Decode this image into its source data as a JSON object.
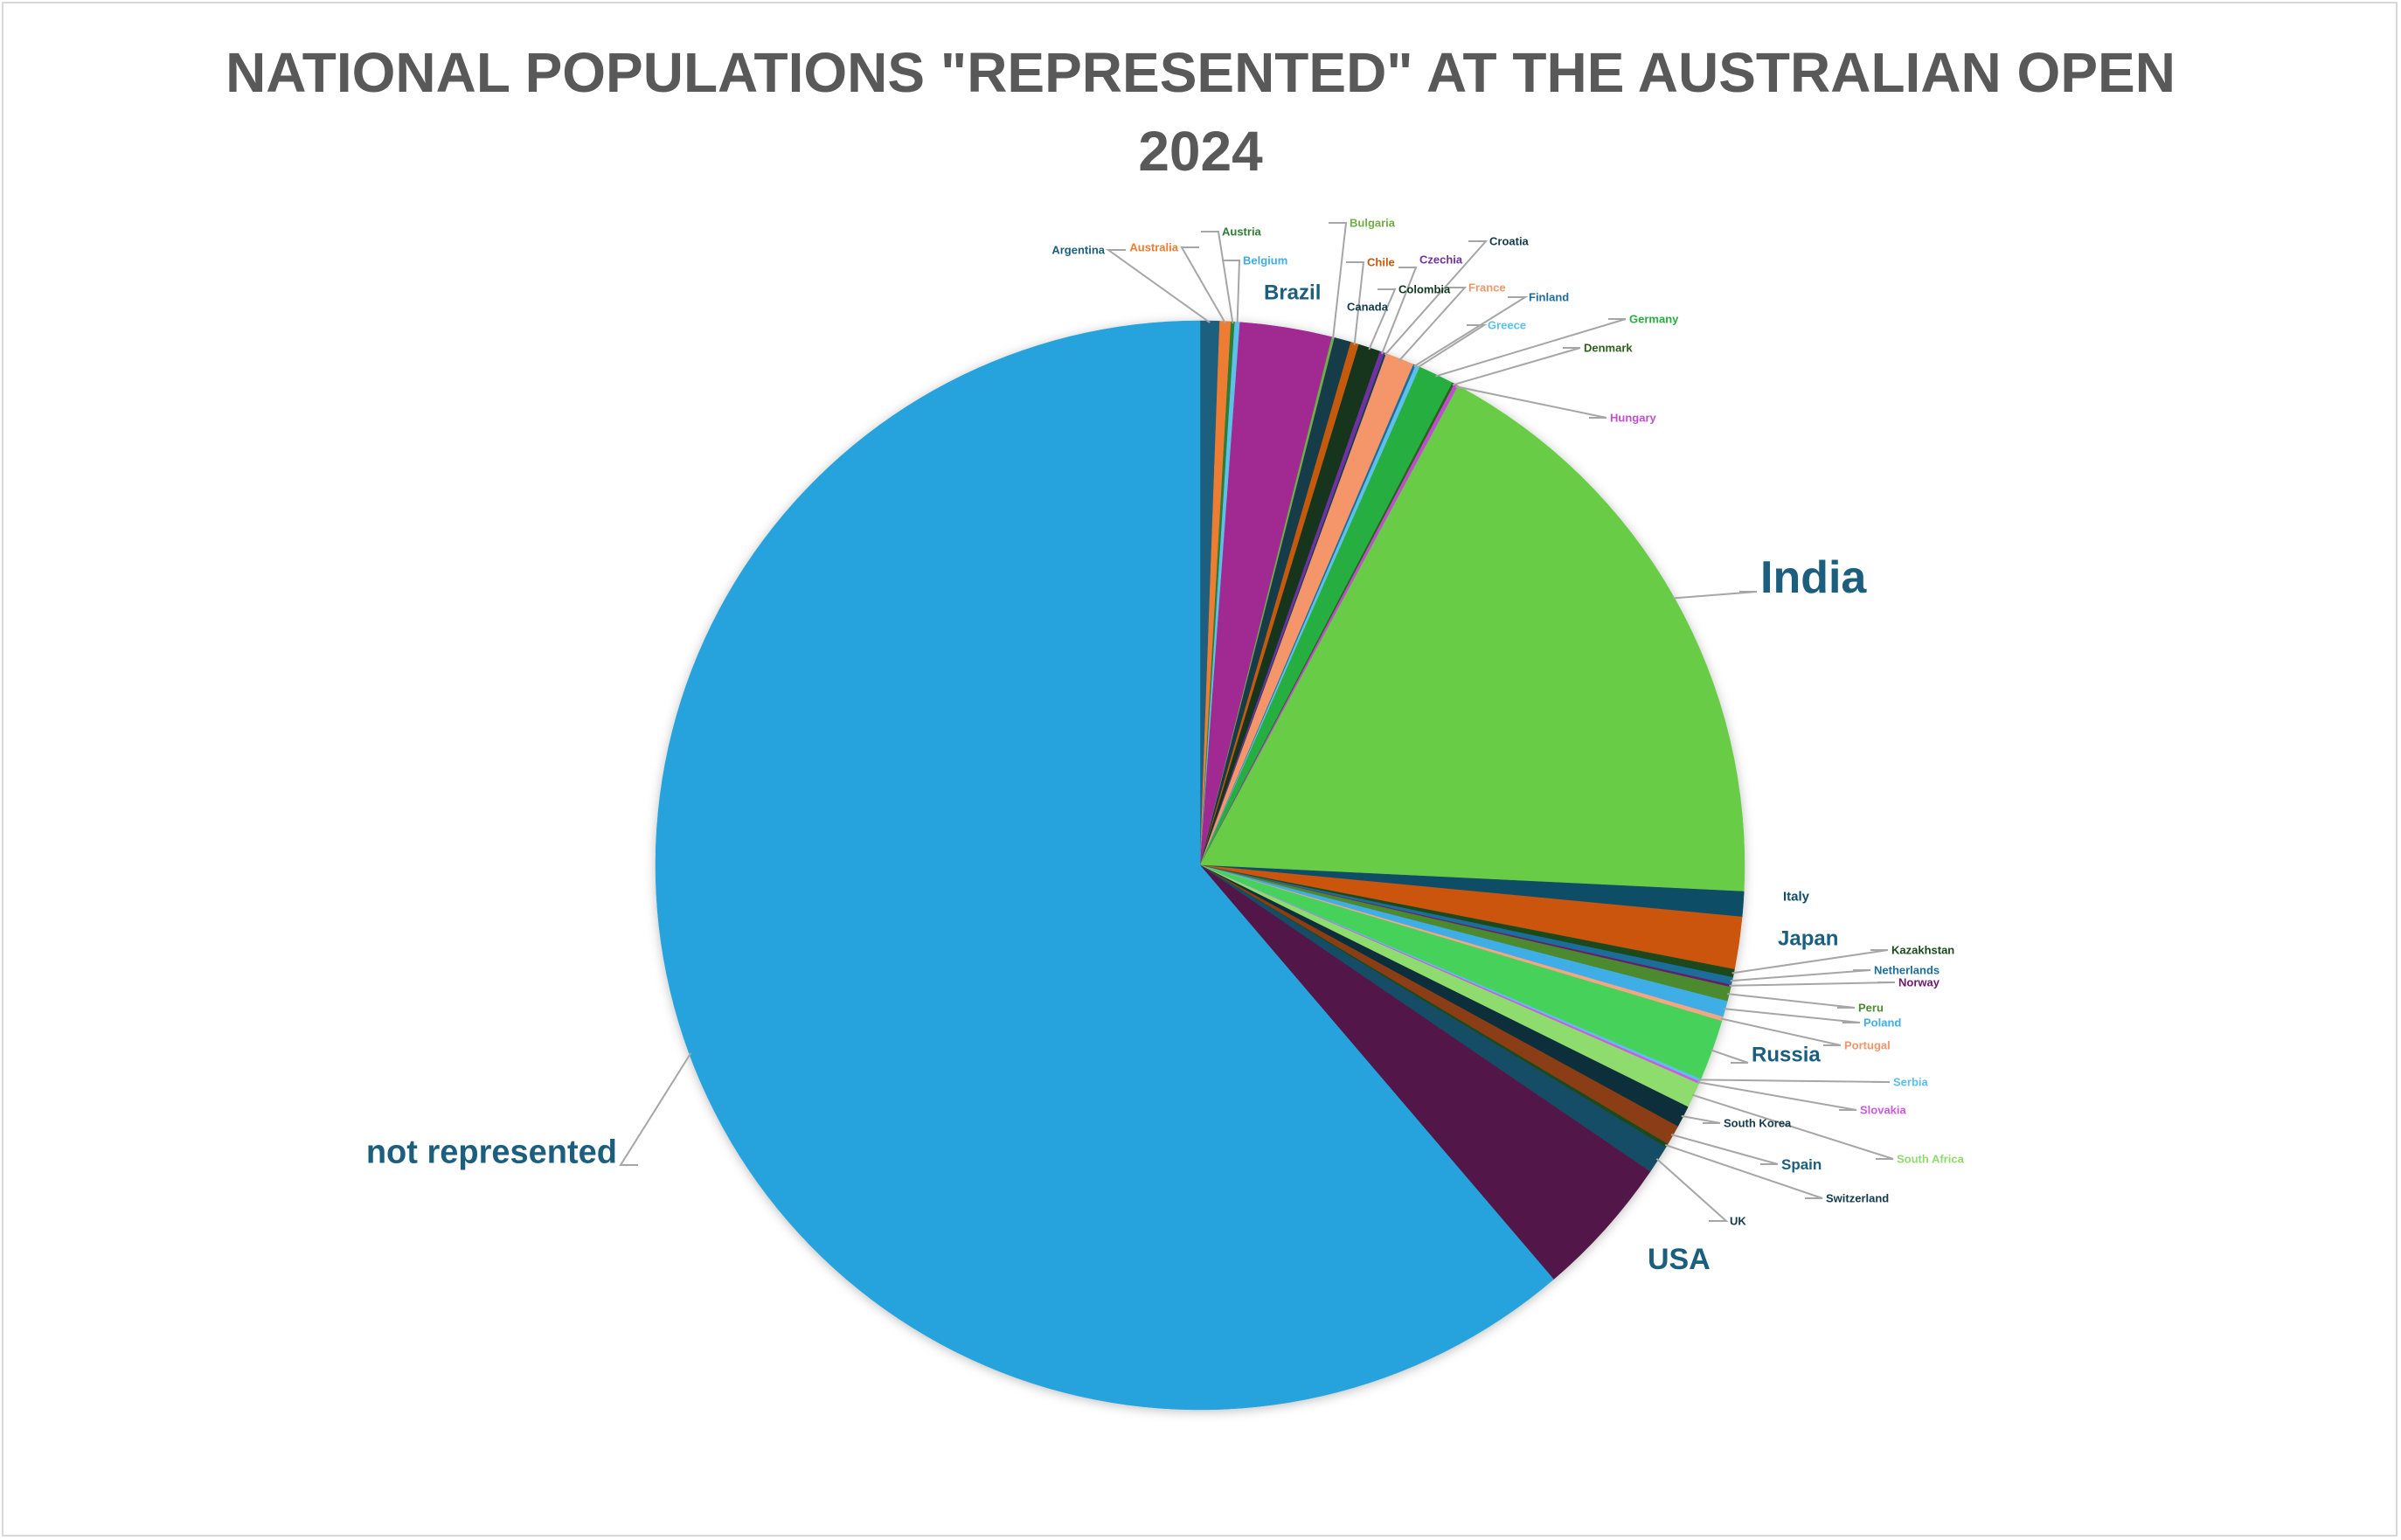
{
  "chart_data": {
    "type": "pie",
    "title_line1": "NATIONAL POPULATIONS \"REPRESENTED\" AT THE AUSTRALIAN OPEN",
    "title_line2": "2024",
    "slices": [
      {
        "label": "Argentina",
        "value": 0.57,
        "color": "#1b5e7e"
      },
      {
        "label": "Australia",
        "value": 0.33,
        "color": "#ed7d31"
      },
      {
        "label": "Austria",
        "value": 0.11,
        "color": "#2e7d32"
      },
      {
        "label": "Belgium",
        "value": 0.15,
        "color": "#5bc0eb"
      },
      {
        "label": "Brazil",
        "value": 2.71,
        "color": "#a12a92"
      },
      {
        "label": "Bulgaria",
        "value": 0.08,
        "color": "#70ad47"
      },
      {
        "label": "Canada",
        "value": 0.49,
        "color": "#163a4a"
      },
      {
        "label": "Chile",
        "value": 0.24,
        "color": "#c55a11"
      },
      {
        "label": "Colombia",
        "value": 0.65,
        "color": "#12361f"
      },
      {
        "label": "Czechia",
        "value": 0.14,
        "color": "#7030a0"
      },
      {
        "label": "Croatia",
        "value": 0.05,
        "color": "#163a4a"
      },
      {
        "label": "France",
        "value": 0.85,
        "color": "#f4956a"
      },
      {
        "label": "Finland",
        "value": 0.07,
        "color": "#1f6e9a"
      },
      {
        "label": "Greece",
        "value": 0.13,
        "color": "#5bc0eb"
      },
      {
        "label": "Germany",
        "value": 1.05,
        "color": "#27ae3f"
      },
      {
        "label": "Denmark",
        "value": 0.07,
        "color": "#2e5e1e"
      },
      {
        "label": "Hungary",
        "value": 0.12,
        "color": "#c04ecf"
      },
      {
        "label": "India",
        "value": 17.79,
        "color": "#69cc47"
      },
      {
        "label": "Italy",
        "value": 0.74,
        "color": "#114d66"
      },
      {
        "label": "Japan",
        "value": 1.54,
        "color": "#cc5510"
      },
      {
        "label": "Kazakhstan",
        "value": 0.24,
        "color": "#1b4a1b"
      },
      {
        "label": "Netherlands",
        "value": 0.22,
        "color": "#1f6e9a"
      },
      {
        "label": "Norway",
        "value": 0.07,
        "color": "#6a1b6b"
      },
      {
        "label": "Peru",
        "value": 0.42,
        "color": "#4b8a2e"
      },
      {
        "label": "Poland",
        "value": 0.47,
        "color": "#40aee6"
      },
      {
        "label": "Portugal",
        "value": 0.13,
        "color": "#f4a582"
      },
      {
        "label": "Russia",
        "value": 1.79,
        "color": "#44d15a"
      },
      {
        "label": "Serbia",
        "value": 0.08,
        "color": "#5bc0eb"
      },
      {
        "label": "Slovakia",
        "value": 0.07,
        "color": "#d05adc"
      },
      {
        "label": "South Africa",
        "value": 0.74,
        "color": "#8fdc6e"
      },
      {
        "label": "South Korea",
        "value": 0.64,
        "color": "#0f2f3a"
      },
      {
        "label": "Spain",
        "value": 0.59,
        "color": "#8b3e12"
      },
      {
        "label": "Switzerland",
        "value": 0.11,
        "color": "#1b4a1b"
      },
      {
        "label": "UK",
        "value": 0.84,
        "color": "#124e66"
      },
      {
        "label": "USA",
        "value": 4.21,
        "color": "#521649"
      },
      {
        "label": "not represented",
        "value": 60.85,
        "color": "#27a3dc"
      }
    ]
  }
}
